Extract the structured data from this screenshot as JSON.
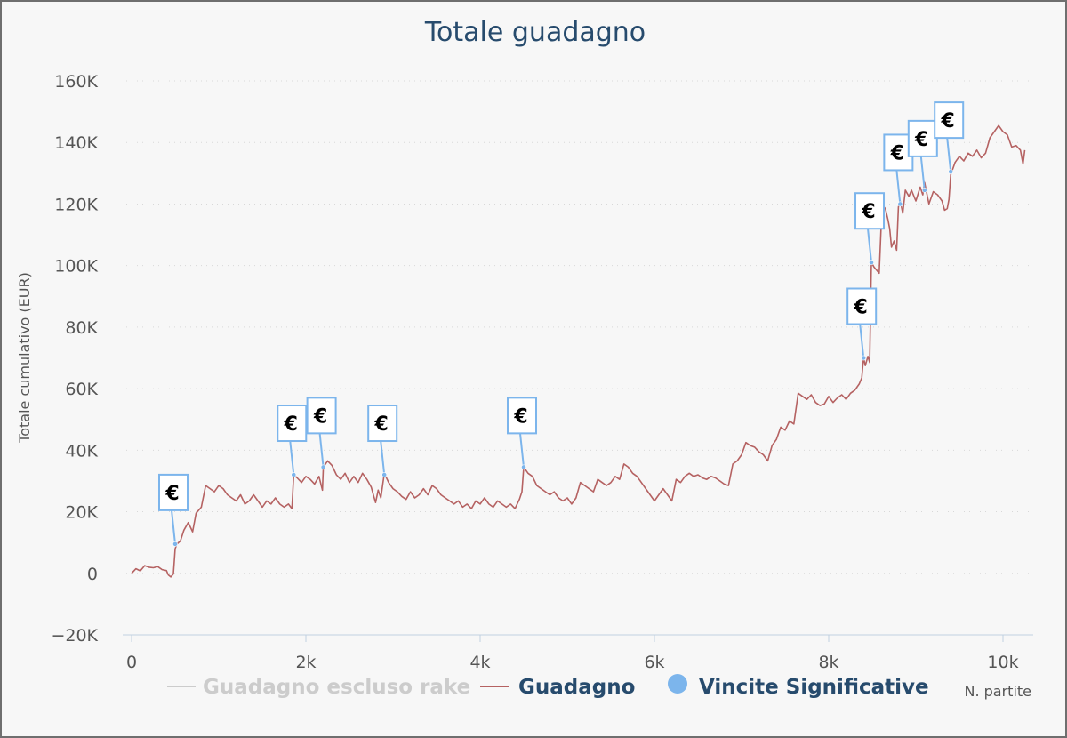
{
  "chart_data": {
    "type": "line",
    "title": "Totale guadagno",
    "ylabel": "Totale cumulativo (EUR)",
    "xlabel": "N. partite",
    "xlim": [
      0,
      10300
    ],
    "ylim": [
      -20000,
      160000
    ],
    "x_ticks": [
      0,
      2000,
      4000,
      6000,
      8000,
      10000
    ],
    "x_tick_labels": [
      "0",
      "2k",
      "4k",
      "6k",
      "8k",
      "10k"
    ],
    "y_ticks": [
      -20000,
      0,
      20000,
      40000,
      60000,
      80000,
      100000,
      120000,
      140000,
      160000
    ],
    "y_tick_labels": [
      "−20K",
      "0",
      "20K",
      "40K",
      "60K",
      "80K",
      "100K",
      "120K",
      "140K",
      "160K"
    ],
    "grid": true,
    "legend_position": "bottom",
    "legend": [
      {
        "label": "Guadagno escluso rake",
        "color": "#cccccc",
        "marker": "line",
        "hidden": true
      },
      {
        "label": "Guadagno",
        "color": "#b56262",
        "marker": "line"
      },
      {
        "label": "Vincite Significative",
        "color": "#7cb5ec",
        "marker": "circle"
      }
    ],
    "series": [
      {
        "name": "Guadagno",
        "color": "#b56262",
        "points": [
          [
            0,
            0
          ],
          [
            50,
            1500
          ],
          [
            100,
            800
          ],
          [
            150,
            2500
          ],
          [
            200,
            2000
          ],
          [
            250,
            1800
          ],
          [
            300,
            2200
          ],
          [
            350,
            1200
          ],
          [
            400,
            900
          ],
          [
            420,
            -500
          ],
          [
            450,
            -1200
          ],
          [
            480,
            -200
          ],
          [
            500,
            8000
          ],
          [
            520,
            9500
          ],
          [
            560,
            10500
          ],
          [
            600,
            14000
          ],
          [
            650,
            16500
          ],
          [
            700,
            13500
          ],
          [
            740,
            19500
          ],
          [
            800,
            21500
          ],
          [
            850,
            28500
          ],
          [
            900,
            27500
          ],
          [
            950,
            26500
          ],
          [
            1000,
            28500
          ],
          [
            1050,
            27500
          ],
          [
            1100,
            25500
          ],
          [
            1150,
            24500
          ],
          [
            1200,
            23500
          ],
          [
            1250,
            25500
          ],
          [
            1300,
            22500
          ],
          [
            1350,
            23500
          ],
          [
            1400,
            25500
          ],
          [
            1450,
            23500
          ],
          [
            1500,
            21500
          ],
          [
            1550,
            23500
          ],
          [
            1600,
            22500
          ],
          [
            1650,
            24500
          ],
          [
            1700,
            22500
          ],
          [
            1750,
            21500
          ],
          [
            1800,
            22500
          ],
          [
            1840,
            21000
          ],
          [
            1860,
            32000
          ],
          [
            1900,
            31000
          ],
          [
            1950,
            29500
          ],
          [
            2000,
            31500
          ],
          [
            2050,
            30500
          ],
          [
            2100,
            29000
          ],
          [
            2150,
            31500
          ],
          [
            2190,
            27000
          ],
          [
            2200,
            34500
          ],
          [
            2250,
            36500
          ],
          [
            2300,
            35000
          ],
          [
            2350,
            32000
          ],
          [
            2400,
            30500
          ],
          [
            2450,
            32500
          ],
          [
            2500,
            29500
          ],
          [
            2550,
            31500
          ],
          [
            2600,
            29500
          ],
          [
            2650,
            32500
          ],
          [
            2700,
            30500
          ],
          [
            2750,
            28000
          ],
          [
            2780,
            25000
          ],
          [
            2800,
            23000
          ],
          [
            2830,
            27000
          ],
          [
            2860,
            24500
          ],
          [
            2900,
            32500
          ],
          [
            2950,
            29500
          ],
          [
            3000,
            27500
          ],
          [
            3050,
            26500
          ],
          [
            3100,
            25000
          ],
          [
            3150,
            24000
          ],
          [
            3200,
            26500
          ],
          [
            3250,
            24500
          ],
          [
            3300,
            25500
          ],
          [
            3350,
            27500
          ],
          [
            3400,
            25500
          ],
          [
            3450,
            28500
          ],
          [
            3500,
            27500
          ],
          [
            3550,
            25500
          ],
          [
            3600,
            24500
          ],
          [
            3650,
            23500
          ],
          [
            3700,
            22500
          ],
          [
            3750,
            23500
          ],
          [
            3800,
            21500
          ],
          [
            3850,
            22500
          ],
          [
            3900,
            21000
          ],
          [
            3950,
            23500
          ],
          [
            4000,
            22500
          ],
          [
            4050,
            24500
          ],
          [
            4100,
            22500
          ],
          [
            4150,
            21500
          ],
          [
            4200,
            23500
          ],
          [
            4250,
            22500
          ],
          [
            4300,
            21500
          ],
          [
            4350,
            22500
          ],
          [
            4400,
            21000
          ],
          [
            4450,
            24000
          ],
          [
            4480,
            26500
          ],
          [
            4500,
            34500
          ],
          [
            4550,
            32500
          ],
          [
            4600,
            31500
          ],
          [
            4650,
            28500
          ],
          [
            4700,
            27500
          ],
          [
            4750,
            26500
          ],
          [
            4800,
            25500
          ],
          [
            4850,
            26500
          ],
          [
            4900,
            24500
          ],
          [
            4950,
            23500
          ],
          [
            5000,
            24500
          ],
          [
            5050,
            22500
          ],
          [
            5100,
            24500
          ],
          [
            5150,
            29500
          ],
          [
            5200,
            28500
          ],
          [
            5250,
            27500
          ],
          [
            5300,
            26500
          ],
          [
            5350,
            30500
          ],
          [
            5400,
            29500
          ],
          [
            5450,
            28500
          ],
          [
            5500,
            29500
          ],
          [
            5550,
            31500
          ],
          [
            5600,
            30500
          ],
          [
            5650,
            35500
          ],
          [
            5700,
            34500
          ],
          [
            5750,
            32500
          ],
          [
            5800,
            31500
          ],
          [
            5850,
            29500
          ],
          [
            5900,
            27500
          ],
          [
            5950,
            25500
          ],
          [
            6000,
            23500
          ],
          [
            6050,
            25500
          ],
          [
            6100,
            27500
          ],
          [
            6150,
            25500
          ],
          [
            6200,
            23500
          ],
          [
            6250,
            30500
          ],
          [
            6300,
            29500
          ],
          [
            6350,
            31500
          ],
          [
            6400,
            32500
          ],
          [
            6450,
            31500
          ],
          [
            6500,
            32000
          ],
          [
            6550,
            31000
          ],
          [
            6600,
            30500
          ],
          [
            6650,
            31500
          ],
          [
            6700,
            31000
          ],
          [
            6750,
            30000
          ],
          [
            6800,
            29000
          ],
          [
            6850,
            28500
          ],
          [
            6900,
            35500
          ],
          [
            6950,
            36500
          ],
          [
            7000,
            38500
          ],
          [
            7050,
            42500
          ],
          [
            7100,
            41500
          ],
          [
            7150,
            41000
          ],
          [
            7200,
            39500
          ],
          [
            7250,
            38500
          ],
          [
            7300,
            36500
          ],
          [
            7350,
            41500
          ],
          [
            7400,
            43500
          ],
          [
            7450,
            47500
          ],
          [
            7500,
            46500
          ],
          [
            7550,
            49500
          ],
          [
            7600,
            48500
          ],
          [
            7650,
            58500
          ],
          [
            7700,
            57500
          ],
          [
            7750,
            56500
          ],
          [
            7800,
            58000
          ],
          [
            7850,
            55500
          ],
          [
            7900,
            54500
          ],
          [
            7950,
            55000
          ],
          [
            8000,
            57500
          ],
          [
            8050,
            55500
          ],
          [
            8100,
            57000
          ],
          [
            8150,
            58000
          ],
          [
            8200,
            56500
          ],
          [
            8250,
            58500
          ],
          [
            8300,
            59500
          ],
          [
            8350,
            61500
          ],
          [
            8380,
            63500
          ],
          [
            8400,
            70000
          ],
          [
            8420,
            67500
          ],
          [
            8450,
            70500
          ],
          [
            8470,
            68500
          ],
          [
            8490,
            101000
          ],
          [
            8520,
            99500
          ],
          [
            8550,
            98500
          ],
          [
            8580,
            97500
          ],
          [
            8600,
            111500
          ],
          [
            8620,
            119500
          ],
          [
            8650,
            118500
          ],
          [
            8680,
            115000
          ],
          [
            8700,
            112000
          ],
          [
            8720,
            106000
          ],
          [
            8750,
            108000
          ],
          [
            8780,
            105000
          ],
          [
            8800,
            119000
          ],
          [
            8820,
            121000
          ],
          [
            8850,
            117000
          ],
          [
            8880,
            124500
          ],
          [
            8920,
            122500
          ],
          [
            8950,
            124500
          ],
          [
            9000,
            121000
          ],
          [
            9050,
            125500
          ],
          [
            9080,
            123000
          ],
          [
            9100,
            127000
          ],
          [
            9150,
            120000
          ],
          [
            9200,
            124000
          ],
          [
            9250,
            123000
          ],
          [
            9300,
            121000
          ],
          [
            9330,
            118000
          ],
          [
            9360,
            118500
          ],
          [
            9380,
            121500
          ],
          [
            9400,
            129500
          ],
          [
            9450,
            133500
          ],
          [
            9500,
            135500
          ],
          [
            9550,
            134000
          ],
          [
            9600,
            136500
          ],
          [
            9650,
            135500
          ],
          [
            9700,
            137500
          ],
          [
            9750,
            135000
          ],
          [
            9800,
            136500
          ],
          [
            9850,
            141500
          ],
          [
            9900,
            143500
          ],
          [
            9950,
            145500
          ],
          [
            10000,
            143500
          ],
          [
            10050,
            142500
          ],
          [
            10100,
            138500
          ],
          [
            10150,
            139000
          ],
          [
            10200,
            137500
          ],
          [
            10230,
            133000
          ],
          [
            10250,
            137500
          ]
        ]
      }
    ],
    "flags": [
      {
        "x": 500,
        "y": 9500,
        "text": "€"
      },
      {
        "x": 1860,
        "y": 32000,
        "text": "€"
      },
      {
        "x": 2200,
        "y": 34500,
        "text": "€"
      },
      {
        "x": 2900,
        "y": 32000,
        "text": "€"
      },
      {
        "x": 4500,
        "y": 34500,
        "text": "€"
      },
      {
        "x": 8400,
        "y": 70000,
        "text": "€"
      },
      {
        "x": 8490,
        "y": 101000,
        "text": "€"
      },
      {
        "x": 8820,
        "y": 120000,
        "text": "€"
      },
      {
        "x": 9100,
        "y": 124500,
        "text": "€"
      },
      {
        "x": 9400,
        "y": 130500,
        "text": "€"
      }
    ]
  }
}
